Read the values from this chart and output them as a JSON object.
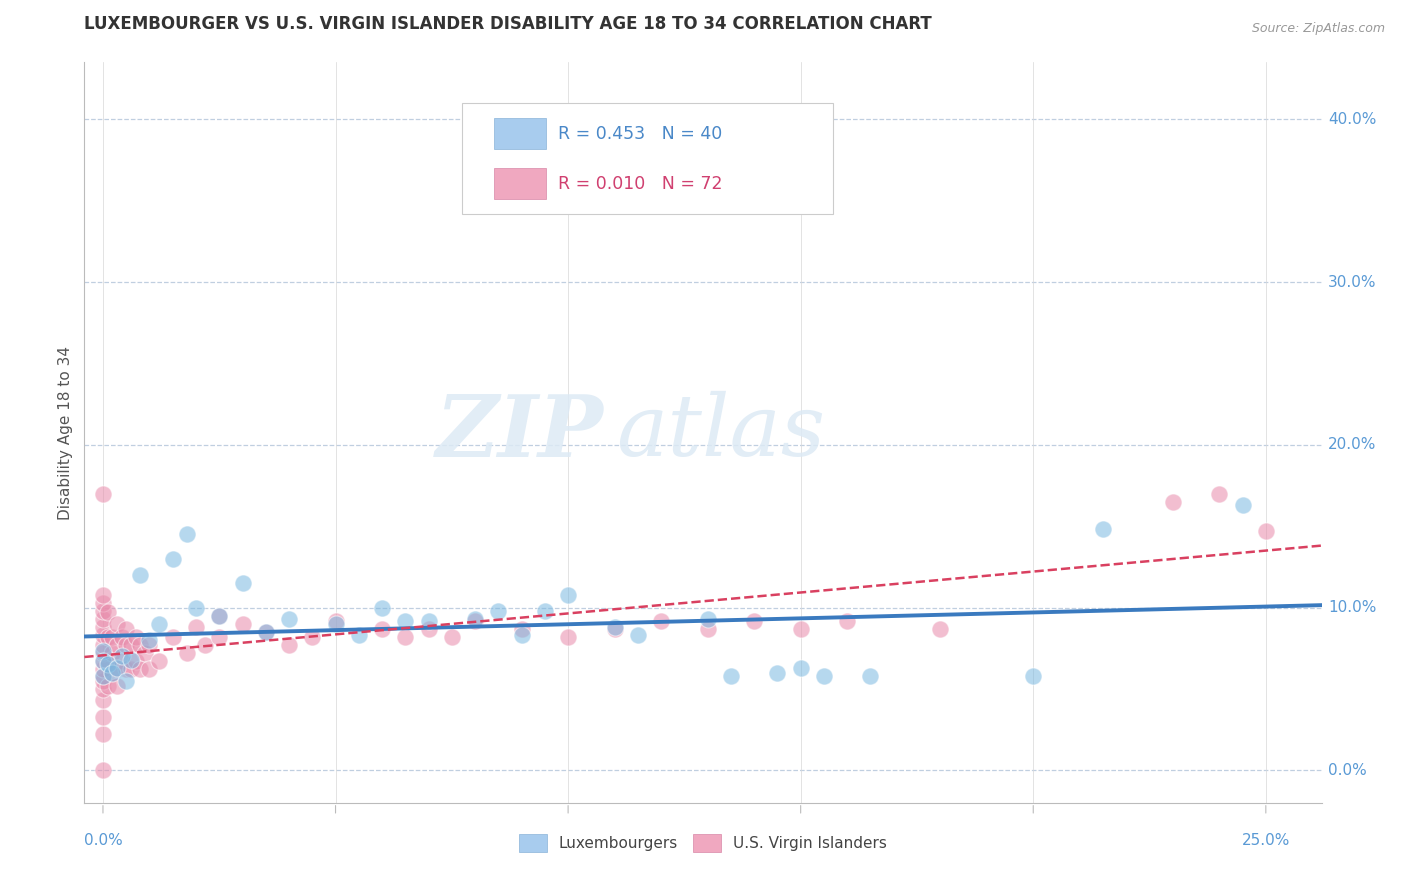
{
  "title": "LUXEMBOURGER VS U.S. VIRGIN ISLANDER DISABILITY AGE 18 TO 34 CORRELATION CHART",
  "source": "Source: ZipAtlas.com",
  "xlim": [
    -0.004,
    0.262
  ],
  "ylim": [
    -0.02,
    0.435
  ],
  "watermark_zip": "ZIP",
  "watermark_atlas": "atlas",
  "legend_bottom": [
    "Luxembourgers",
    "U.S. Virgin Islanders"
  ],
  "lux_color": "#7ab8e0",
  "usvi_color": "#e88aaa",
  "lux_line_color": "#3a7abf",
  "usvi_line_color": "#d94060",
  "background": "#ffffff",
  "ytick_vals": [
    0.0,
    0.1,
    0.2,
    0.3,
    0.4
  ],
  "xtick_minor_vals": [
    0.0,
    0.05,
    0.1,
    0.15,
    0.2,
    0.25
  ],
  "R_lux": 0.453,
  "N_lux": 40,
  "R_usvi": 0.01,
  "N_usvi": 72,
  "lux_scatter": [
    [
      0.0,
      0.073
    ],
    [
      0.0,
      0.067
    ],
    [
      0.0,
      0.058
    ],
    [
      0.001,
      0.065
    ],
    [
      0.002,
      0.06
    ],
    [
      0.003,
      0.063
    ],
    [
      0.004,
      0.07
    ],
    [
      0.005,
      0.055
    ],
    [
      0.006,
      0.068
    ],
    [
      0.008,
      0.12
    ],
    [
      0.01,
      0.08
    ],
    [
      0.012,
      0.09
    ],
    [
      0.015,
      0.13
    ],
    [
      0.018,
      0.145
    ],
    [
      0.02,
      0.1
    ],
    [
      0.025,
      0.095
    ],
    [
      0.03,
      0.115
    ],
    [
      0.035,
      0.085
    ],
    [
      0.04,
      0.093
    ],
    [
      0.05,
      0.09
    ],
    [
      0.055,
      0.083
    ],
    [
      0.06,
      0.1
    ],
    [
      0.065,
      0.092
    ],
    [
      0.07,
      0.092
    ],
    [
      0.08,
      0.093
    ],
    [
      0.085,
      0.098
    ],
    [
      0.09,
      0.083
    ],
    [
      0.095,
      0.098
    ],
    [
      0.1,
      0.108
    ],
    [
      0.11,
      0.088
    ],
    [
      0.115,
      0.083
    ],
    [
      0.13,
      0.093
    ],
    [
      0.135,
      0.058
    ],
    [
      0.145,
      0.06
    ],
    [
      0.15,
      0.063
    ],
    [
      0.155,
      0.058
    ],
    [
      0.165,
      0.058
    ],
    [
      0.2,
      0.058
    ],
    [
      0.215,
      0.148
    ],
    [
      0.245,
      0.163
    ]
  ],
  "usvi_scatter": [
    [
      0.0,
      0.0
    ],
    [
      0.0,
      0.022
    ],
    [
      0.0,
      0.033
    ],
    [
      0.0,
      0.043
    ],
    [
      0.0,
      0.05
    ],
    [
      0.0,
      0.055
    ],
    [
      0.0,
      0.058
    ],
    [
      0.0,
      0.062
    ],
    [
      0.0,
      0.067
    ],
    [
      0.0,
      0.072
    ],
    [
      0.0,
      0.077
    ],
    [
      0.0,
      0.083
    ],
    [
      0.0,
      0.088
    ],
    [
      0.0,
      0.093
    ],
    [
      0.0,
      0.098
    ],
    [
      0.0,
      0.103
    ],
    [
      0.0,
      0.108
    ],
    [
      0.0,
      0.17
    ],
    [
      0.001,
      0.052
    ],
    [
      0.001,
      0.067
    ],
    [
      0.001,
      0.082
    ],
    [
      0.001,
      0.097
    ],
    [
      0.002,
      0.06
    ],
    [
      0.002,
      0.072
    ],
    [
      0.002,
      0.082
    ],
    [
      0.003,
      0.052
    ],
    [
      0.003,
      0.062
    ],
    [
      0.003,
      0.077
    ],
    [
      0.003,
      0.09
    ],
    [
      0.004,
      0.067
    ],
    [
      0.004,
      0.082
    ],
    [
      0.005,
      0.062
    ],
    [
      0.005,
      0.077
    ],
    [
      0.005,
      0.087
    ],
    [
      0.006,
      0.062
    ],
    [
      0.006,
      0.077
    ],
    [
      0.007,
      0.067
    ],
    [
      0.007,
      0.082
    ],
    [
      0.008,
      0.062
    ],
    [
      0.008,
      0.077
    ],
    [
      0.009,
      0.072
    ],
    [
      0.01,
      0.062
    ],
    [
      0.01,
      0.077
    ],
    [
      0.012,
      0.067
    ],
    [
      0.015,
      0.082
    ],
    [
      0.018,
      0.072
    ],
    [
      0.02,
      0.088
    ],
    [
      0.022,
      0.077
    ],
    [
      0.025,
      0.082
    ],
    [
      0.025,
      0.095
    ],
    [
      0.03,
      0.09
    ],
    [
      0.035,
      0.085
    ],
    [
      0.04,
      0.077
    ],
    [
      0.045,
      0.082
    ],
    [
      0.05,
      0.092
    ],
    [
      0.06,
      0.087
    ],
    [
      0.065,
      0.082
    ],
    [
      0.07,
      0.087
    ],
    [
      0.075,
      0.082
    ],
    [
      0.08,
      0.092
    ],
    [
      0.09,
      0.087
    ],
    [
      0.1,
      0.082
    ],
    [
      0.11,
      0.087
    ],
    [
      0.12,
      0.092
    ],
    [
      0.13,
      0.087
    ],
    [
      0.14,
      0.092
    ],
    [
      0.15,
      0.087
    ],
    [
      0.16,
      0.092
    ],
    [
      0.18,
      0.087
    ],
    [
      0.23,
      0.165
    ],
    [
      0.24,
      0.17
    ],
    [
      0.25,
      0.147
    ]
  ]
}
